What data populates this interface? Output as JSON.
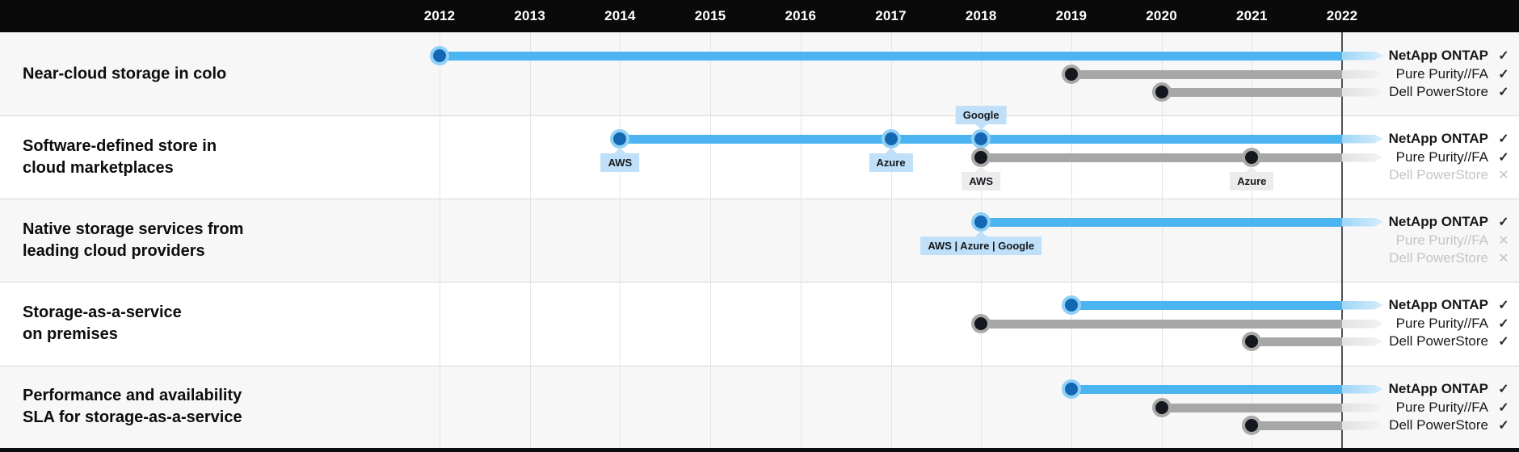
{
  "header": {
    "years": [
      "2012",
      "2013",
      "2014",
      "2015",
      "2016",
      "2017",
      "2018",
      "2019",
      "2020",
      "2021",
      "2022"
    ]
  },
  "icons": {
    "check": "✓",
    "cross": "✕"
  },
  "colors": {
    "header_bg": "#0a0a0a",
    "row_alt_bg": "#f7f7f8",
    "blue_bar": "#4cb4f1",
    "gray_bar": "#a7a7a7",
    "blue_badge_bg": "#bfe0f8",
    "gray_badge_bg": "#ececec",
    "current_year_line": "#4d5258",
    "gridline": "#e4e4e4",
    "disabled_text": "#c2c4c6"
  },
  "chart_data": {
    "type": "timeline",
    "x_domain": [
      2012,
      2022
    ],
    "x_ticks": [
      2012,
      2013,
      2014,
      2015,
      2016,
      2017,
      2018,
      2019,
      2020,
      2021,
      2022
    ],
    "grid": true,
    "legend_position": "right",
    "products": [
      "NetApp ONTAP",
      "Pure Purity//FA",
      "Dell PowerStore"
    ],
    "rows": [
      {
        "label_lines": [
          "Near-cloud storage in colo"
        ],
        "series": [
          {
            "name": "NetApp ONTAP",
            "color": "blue",
            "supported": true,
            "start": 2012,
            "milestones": [
              {
                "year": 2012
              }
            ]
          },
          {
            "name": "Pure Purity//FA",
            "color": "gray",
            "supported": true,
            "start": 2019,
            "milestones": [
              {
                "year": 2019
              }
            ]
          },
          {
            "name": "Dell PowerStore",
            "color": "gray",
            "supported": true,
            "start": 2020,
            "milestones": [
              {
                "year": 2020
              }
            ]
          }
        ]
      },
      {
        "label_lines": [
          "Software-defined store in",
          "cloud marketplaces"
        ],
        "series": [
          {
            "name": "NetApp ONTAP",
            "color": "blue",
            "supported": true,
            "start": 2014,
            "milestones": [
              {
                "year": 2014,
                "badge": "AWS",
                "pos": "below"
              },
              {
                "year": 2017,
                "badge": "Azure",
                "pos": "below"
              },
              {
                "year": 2018,
                "badge": "Google",
                "pos": "above"
              }
            ]
          },
          {
            "name": "Pure Purity//FA",
            "color": "gray",
            "supported": true,
            "start": 2018,
            "milestones": [
              {
                "year": 2018,
                "badge": "AWS",
                "pos": "below"
              },
              {
                "year": 2021,
                "badge": "Azure",
                "pos": "below"
              }
            ]
          },
          {
            "name": "Dell PowerStore",
            "supported": false
          }
        ]
      },
      {
        "label_lines": [
          "Native storage services from",
          "leading cloud providers"
        ],
        "series": [
          {
            "name": "NetApp ONTAP",
            "color": "blue",
            "supported": true,
            "start": 2018,
            "milestones": [
              {
                "year": 2018,
                "badge": "AWS | Azure | Google",
                "pos": "below"
              }
            ]
          },
          {
            "name": "Pure Purity//FA",
            "supported": false
          },
          {
            "name": "Dell PowerStore",
            "supported": false
          }
        ]
      },
      {
        "label_lines": [
          "Storage-as-a-service",
          "on premises"
        ],
        "series": [
          {
            "name": "NetApp ONTAP",
            "color": "blue",
            "supported": true,
            "start": 2019,
            "milestones": [
              {
                "year": 2019
              }
            ]
          },
          {
            "name": "Pure Purity//FA",
            "color": "gray",
            "supported": true,
            "start": 2018,
            "milestones": [
              {
                "year": 2018
              }
            ]
          },
          {
            "name": "Dell PowerStore",
            "color": "gray",
            "supported": true,
            "start": 2021,
            "milestones": [
              {
                "year": 2021
              }
            ]
          }
        ]
      },
      {
        "label_lines": [
          "Performance and availability",
          "SLA for storage-as-a-service"
        ],
        "series": [
          {
            "name": "NetApp ONTAP",
            "color": "blue",
            "supported": true,
            "start": 2019,
            "milestones": [
              {
                "year": 2019
              }
            ]
          },
          {
            "name": "Pure Purity//FA",
            "color": "gray",
            "supported": true,
            "start": 2020,
            "milestones": [
              {
                "year": 2020
              }
            ]
          },
          {
            "name": "Dell PowerStore",
            "color": "gray",
            "supported": true,
            "start": 2021,
            "milestones": [
              {
                "year": 2021
              }
            ]
          }
        ]
      }
    ]
  }
}
